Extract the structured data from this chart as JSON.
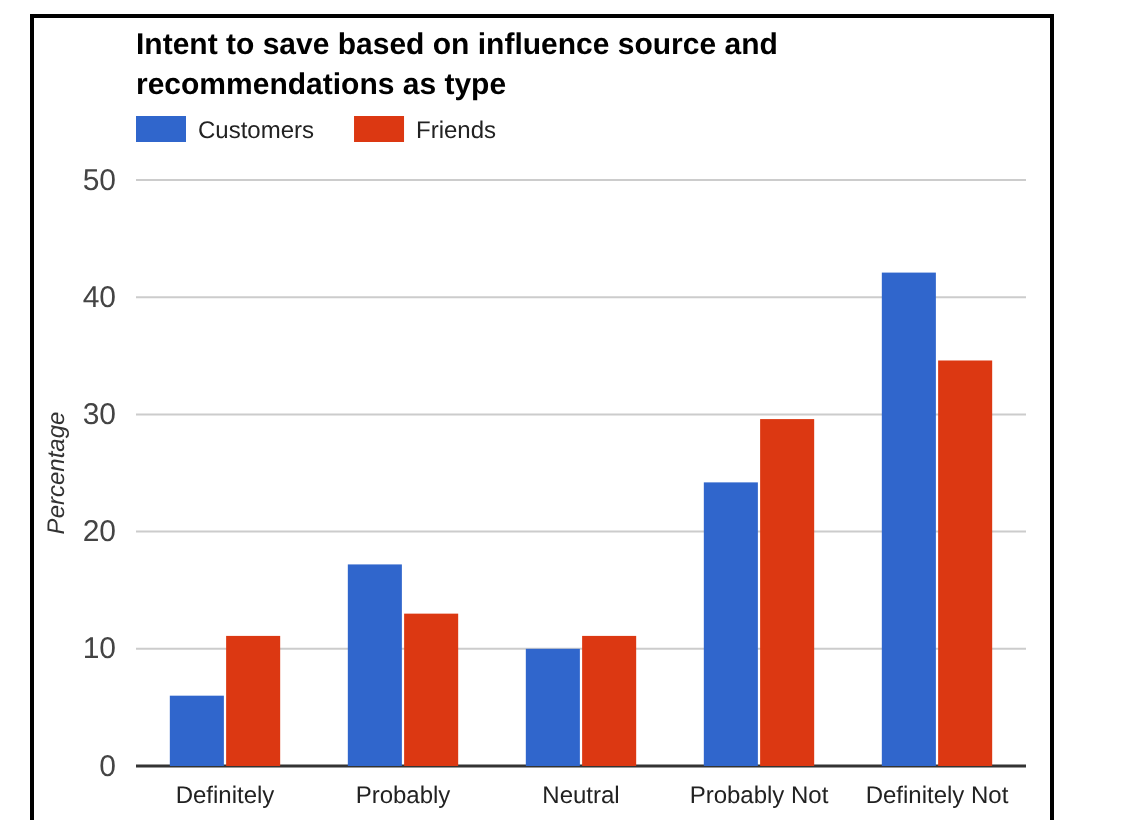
{
  "chart_data": {
    "type": "bar",
    "title": "Intent to save based on influence source and recommendations as type",
    "ylabel": "Percentage",
    "categories": [
      "Definitely",
      "Probably",
      "Neutral",
      "Probably Not",
      "Definitely Not"
    ],
    "series": [
      {
        "name": "Customers",
        "color": "#3066cc",
        "values": [
          6.0,
          17.2,
          10.0,
          24.2,
          42.1
        ]
      },
      {
        "name": "Friends",
        "color": "#dc3812",
        "values": [
          11.1,
          13.0,
          11.1,
          29.6,
          34.6
        ]
      }
    ],
    "ylim": [
      0,
      50
    ],
    "yticks": [
      0,
      10,
      20,
      30,
      40,
      50
    ],
    "grid": "y",
    "legend": "top left"
  }
}
